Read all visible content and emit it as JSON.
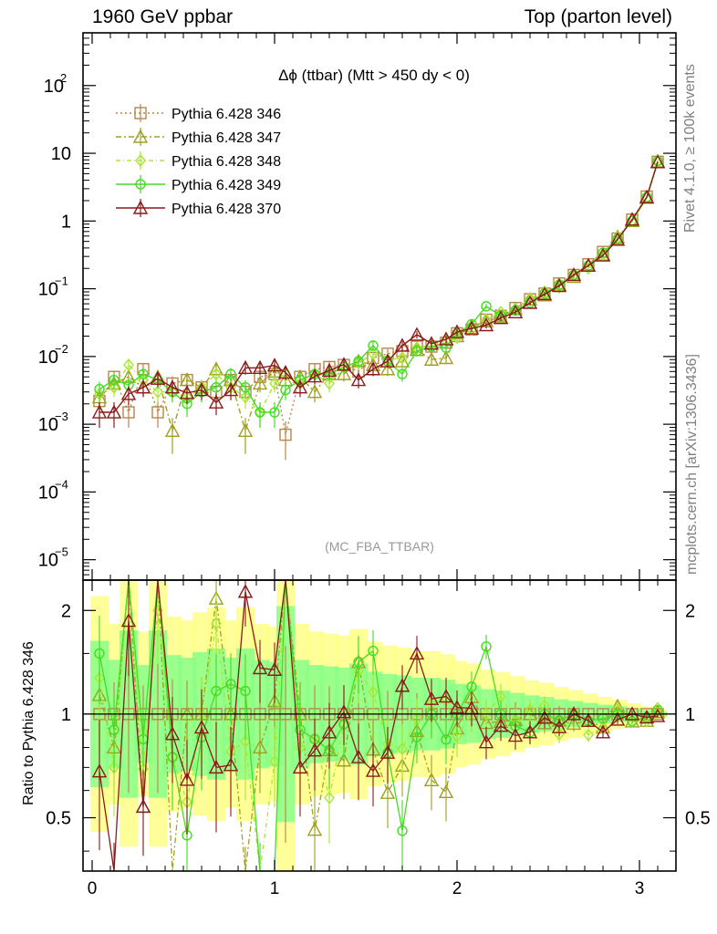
{
  "header": {
    "left": "1960 GeV ppbar",
    "right": "Top (parton level)"
  },
  "side_labels": {
    "rivet": "Rivet 4.1.0, ≥ 100k events",
    "mcplots": "mcplots.cern.ch [arXiv:1306.3436]"
  },
  "watermark": "(MC_FBA_TTBAR)",
  "chart_data": {
    "type": "line",
    "title": "Δϕ (ttbar) (Mtt > 450 dy < 0)",
    "xlabel": "",
    "ylabel_main": "",
    "ylabel_ratio": "Ratio to Pythia 6.428 346",
    "xlim": [
      -0.05,
      3.2
    ],
    "ylim_main": [
      5e-06,
      600
    ],
    "ylim_ratio": [
      0.35,
      2.45
    ],
    "yscale_main": "log",
    "yscale_ratio": "log",
    "xticks": [
      {
        "v": 0,
        "label": "0"
      },
      {
        "v": 1,
        "label": "1"
      },
      {
        "v": 2,
        "label": "2"
      },
      {
        "v": 3,
        "label": "3"
      }
    ],
    "yticks_main": [
      {
        "v": 100,
        "label": "10",
        "exp": "2"
      },
      {
        "v": 10,
        "label": "10",
        "exp": ""
      },
      {
        "v": 1,
        "label": "1",
        "exp": ""
      },
      {
        "v": 0.1,
        "label": "10",
        "exp": "−1"
      },
      {
        "v": 0.01,
        "label": "10",
        "exp": "−2"
      },
      {
        "v": 0.001,
        "label": "10",
        "exp": "−3"
      },
      {
        "v": 0.0001,
        "label": "10",
        "exp": "−4"
      },
      {
        "v": 1e-05,
        "label": "10",
        "exp": "−5"
      }
    ],
    "yticks_ratio": [
      {
        "v": 0.5,
        "label": "0.5"
      },
      {
        "v": 1,
        "label": "1"
      },
      {
        "v": 2,
        "label": "2"
      }
    ],
    "legend_position": "top-left",
    "x": [
      0.04,
      0.12,
      0.2,
      0.28,
      0.36,
      0.44,
      0.52,
      0.6,
      0.68,
      0.76,
      0.84,
      0.92,
      1.0,
      1.06,
      1.14,
      1.22,
      1.3,
      1.38,
      1.46,
      1.54,
      1.62,
      1.7,
      1.78,
      1.86,
      1.94,
      2.0,
      2.08,
      2.16,
      2.24,
      2.32,
      2.4,
      2.48,
      2.56,
      2.64,
      2.72,
      2.8,
      2.88,
      2.96,
      3.04,
      3.1
    ],
    "series": [
      {
        "name": "Pythia 6.428 346",
        "color": "#b8864b",
        "marker": "square",
        "dash": "2,3",
        "values": [
          0.0022,
          0.005,
          0.0015,
          0.0065,
          0.0015,
          0.004,
          0.0045,
          0.0035,
          0.003,
          0.0045,
          0.003,
          0.005,
          0.0055,
          0.0007,
          0.005,
          0.0065,
          0.007,
          0.0075,
          0.006,
          0.0095,
          0.011,
          0.012,
          0.014,
          0.014,
          0.016,
          0.022,
          0.025,
          0.035,
          0.04,
          0.052,
          0.07,
          0.085,
          0.12,
          0.16,
          0.23,
          0.35,
          0.55,
          1.05,
          2.3,
          7.5
        ]
      },
      {
        "name": "Pythia 6.428 347",
        "color": "#a0a020",
        "marker": "triangle",
        "dash": "6,3,2,3",
        "values": [
          0.0025,
          0.004,
          0.005,
          0.0035,
          0.005,
          0.0008,
          0.0045,
          0.0035,
          0.0065,
          0.0045,
          0.0008,
          0.004,
          0.006,
          0.0045,
          0.005,
          0.003,
          0.0055,
          0.0055,
          0.0085,
          0.0075,
          0.0065,
          0.0085,
          0.0125,
          0.009,
          0.0095,
          0.02,
          0.028,
          0.033,
          0.038,
          0.05,
          0.07,
          0.08,
          0.115,
          0.15,
          0.22,
          0.32,
          0.58,
          1.0,
          2.2,
          7.6
        ]
      },
      {
        "name": "Pythia 6.428 348",
        "color": "#a8e830",
        "marker": "diamond",
        "dash": "5,3,1,3",
        "values": [
          0.0028,
          0.0035,
          0.0075,
          0.0045,
          0.003,
          0.003,
          0.0025,
          0.0035,
          0.0055,
          0.0035,
          0.0025,
          0.0015,
          0.004,
          0.0055,
          0.004,
          0.0055,
          0.004,
          0.007,
          0.008,
          0.011,
          0.009,
          0.0095,
          0.0135,
          0.015,
          0.0175,
          0.019,
          0.025,
          0.035,
          0.045,
          0.05,
          0.072,
          0.09,
          0.105,
          0.16,
          0.2,
          0.32,
          0.57,
          1.0,
          2.2,
          7.8
        ]
      },
      {
        "name": "Pythia 6.428 349",
        "color": "#44dd22",
        "marker": "circle",
        "dash": "",
        "values": [
          0.0033,
          0.0045,
          0.0038,
          0.0055,
          0.0045,
          0.003,
          0.002,
          0.003,
          0.0035,
          0.0055,
          0.0035,
          0.0015,
          0.0015,
          0.0032,
          0.0045,
          0.0055,
          0.0055,
          0.007,
          0.0085,
          0.0145,
          0.0085,
          0.0055,
          0.012,
          0.014,
          0.0135,
          0.022,
          0.03,
          0.055,
          0.04,
          0.048,
          0.062,
          0.085,
          0.115,
          0.16,
          0.22,
          0.34,
          0.55,
          1.0,
          2.25,
          7.7
        ]
      },
      {
        "name": "Pythia 6.428 370",
        "color": "#8b1a1a",
        "marker": "triangle",
        "dash": "",
        "values": [
          0.0015,
          0.0015,
          0.0028,
          0.0035,
          0.0047,
          0.0035,
          0.0029,
          0.0032,
          0.0021,
          0.0032,
          0.0068,
          0.0068,
          0.0074,
          0.0058,
          0.0035,
          0.0051,
          0.0062,
          0.0076,
          0.0045,
          0.0065,
          0.0085,
          0.0145,
          0.021,
          0.0155,
          0.018,
          0.023,
          0.026,
          0.029,
          0.037,
          0.045,
          0.062,
          0.083,
          0.11,
          0.16,
          0.22,
          0.31,
          0.53,
          1.05,
          2.25,
          7.4
        ]
      }
    ]
  }
}
